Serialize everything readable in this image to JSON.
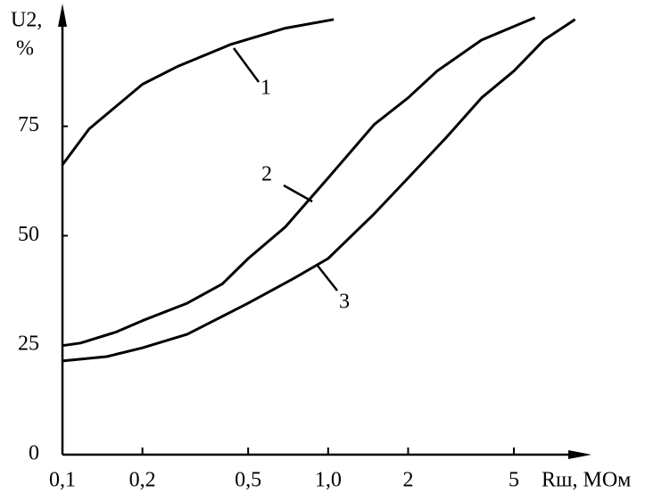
{
  "chart_data": {
    "type": "line",
    "x_log": true,
    "y_label": [
      "U2,",
      "%"
    ],
    "x_label": "Rш, МОм",
    "xlim": [
      0.1,
      9.5
    ],
    "ylim": [
      0,
      101.8
    ],
    "xticks": [
      {
        "value": 0.1,
        "label": "0,1"
      },
      {
        "value": 0.2,
        "label": "0,2"
      },
      {
        "value": 0.5,
        "label": "0,5"
      },
      {
        "value": 1.0,
        "label": "1,0"
      },
      {
        "value": 2,
        "label": "2"
      },
      {
        "value": 5,
        "label": "5"
      }
    ],
    "yticks": [
      0,
      25,
      50,
      75
    ],
    "annotations": [
      "1",
      "2",
      "3"
    ],
    "series": [
      {
        "color": "#000000",
        "x": [
          0.1,
          0.126,
          0.2,
          0.27,
          0.43,
          0.69,
          1.05
        ],
        "values": [
          66.2,
          74.4,
          84.6,
          88.6,
          93.7,
          97.4,
          99.4
        ]
      },
      {
        "color": "#000000",
        "x": [
          0.1,
          0.117,
          0.159,
          0.2,
          0.295,
          0.4,
          0.5,
          0.69,
          1.0,
          1.49,
          2,
          2.57,
          3.78,
          6.0
        ],
        "values": [
          24.9,
          25.5,
          28,
          30.6,
          34.6,
          39,
          44.8,
          52,
          63.2,
          75.4,
          81.5,
          87.6,
          94.7,
          99.8
        ]
      },
      {
        "color": "#000000",
        "x": [
          0.1,
          0.147,
          0.2,
          0.295,
          0.5,
          0.745,
          1.0,
          1.49,
          2,
          2.77,
          3.78,
          5,
          6.49,
          8.5
        ],
        "values": [
          21.4,
          22.4,
          24.4,
          27.5,
          34.6,
          40.3,
          44.8,
          55,
          63.2,
          72.3,
          81.5,
          87.6,
          94.7,
          99.4
        ]
      }
    ]
  }
}
